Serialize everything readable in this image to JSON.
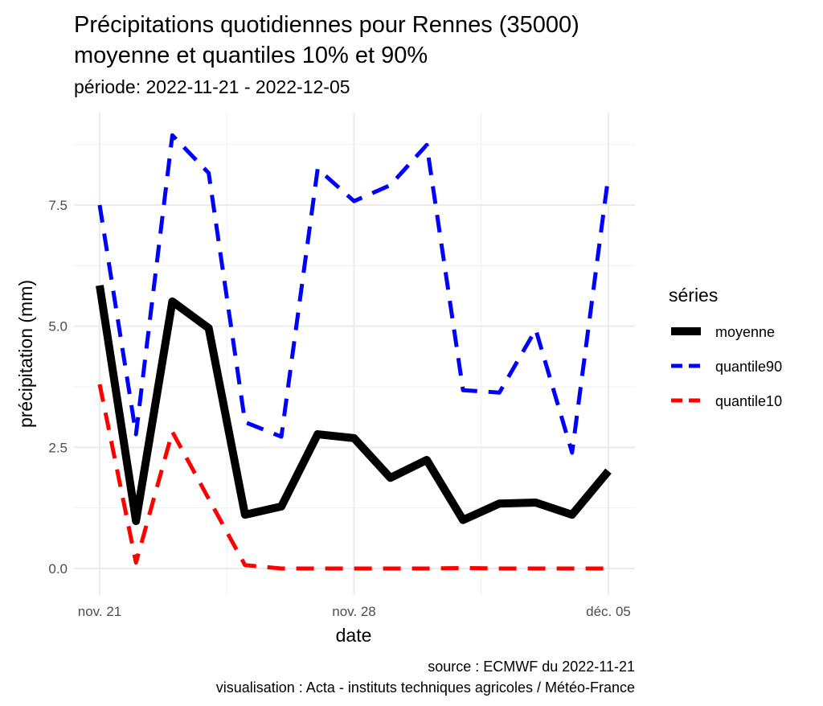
{
  "chart_data": {
    "type": "line",
    "title": "Précipitations quotidiennes pour Rennes (35000)",
    "title_line2": "moyenne et quantiles 10% et 90%",
    "subtitle": "période: 2022-11-21 - 2022-12-05",
    "xlabel": "date",
    "ylabel": "précipitation (mm)",
    "caption_line1": "source : ECMWF du 2022-11-21",
    "caption_line2": "visualisation : Acta - instituts techniques agricoles / Météo-France",
    "x": [
      "2022-11-21",
      "2022-11-22",
      "2022-11-23",
      "2022-11-24",
      "2022-11-25",
      "2022-11-26",
      "2022-11-27",
      "2022-11-28",
      "2022-11-29",
      "2022-11-30",
      "2022-12-01",
      "2022-12-02",
      "2022-12-03",
      "2022-12-04",
      "2022-12-05"
    ],
    "xticks": [
      {
        "date": "2022-11-21",
        "label": "nov. 21"
      },
      {
        "date": "2022-11-28",
        "label": "nov. 28"
      },
      {
        "date": "2022-12-05",
        "label": "déc. 05"
      }
    ],
    "yticks": [
      {
        "value": 0,
        "label": "0.0"
      },
      {
        "value": 2.5,
        "label": "2.5"
      },
      {
        "value": 5,
        "label": "5.0"
      },
      {
        "value": 7.5,
        "label": "7.5"
      }
    ],
    "ylim": [
      -0.45,
      9.5
    ],
    "grid": true,
    "legend_title": "séries",
    "legend_position": "right",
    "series": [
      {
        "name": "moyenne",
        "color": "#000000",
        "dash": "solid",
        "values": [
          5.84,
          0.98,
          5.51,
          4.96,
          1.11,
          1.28,
          2.77,
          2.69,
          1.87,
          2.24,
          1.0,
          1.34,
          1.36,
          1.11,
          2.01
        ]
      },
      {
        "name": "quantile90",
        "color": "#0000ff",
        "dash": "dashed",
        "values": [
          7.5,
          2.77,
          8.94,
          8.16,
          3.02,
          2.72,
          8.25,
          7.58,
          7.91,
          8.74,
          3.68,
          3.63,
          4.93,
          2.39,
          8.11
        ]
      },
      {
        "name": "quantile10",
        "color": "#ff0000",
        "dash": "dashed",
        "values": [
          3.8,
          0.12,
          2.82,
          1.44,
          0.07,
          0,
          0,
          0,
          0,
          0,
          0.01,
          0,
          0,
          0,
          0
        ]
      }
    ]
  }
}
